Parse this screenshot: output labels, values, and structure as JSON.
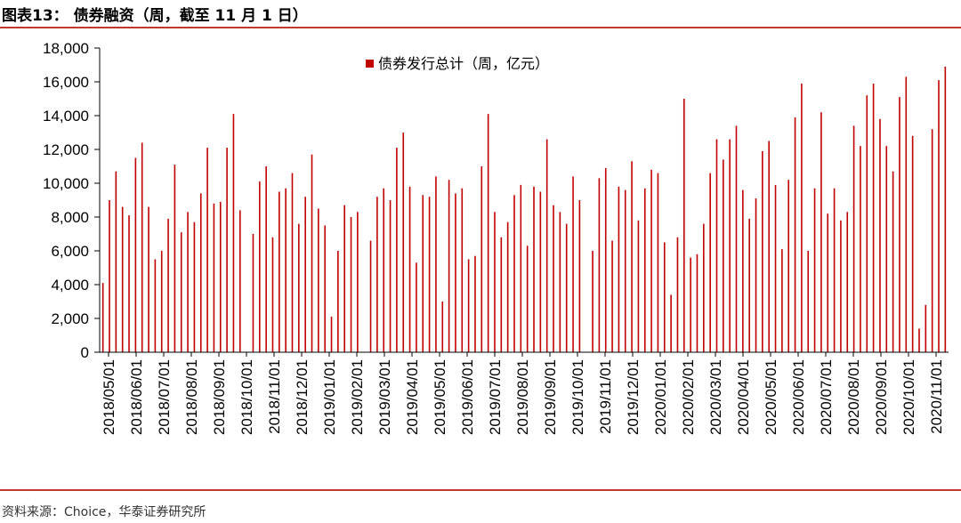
{
  "header": {
    "title": "图表13： 债券融资（周，截至 11 月 1 日）"
  },
  "footer": {
    "source": "资料来源：Choice，华泰证券研究所"
  },
  "colors": {
    "bar": "#c00000",
    "rule": "#c0392b"
  },
  "chart_data": {
    "type": "bar",
    "title": "",
    "xlabel": "",
    "ylabel": "",
    "ylim": [
      0,
      18000
    ],
    "y_ticks": [
      0,
      2000,
      4000,
      6000,
      8000,
      10000,
      12000,
      14000,
      16000,
      18000
    ],
    "y_tick_labels": [
      "0",
      "2,000",
      "4,000",
      "6,000",
      "8,000",
      "10,000",
      "12,000",
      "14,000",
      "16,000",
      "18,000"
    ],
    "x_tick_labels": [
      "2018/05/01",
      "2018/06/01",
      "2018/07/01",
      "2018/08/01",
      "2018/09/01",
      "2018/10/01",
      "2018/11/01",
      "2018/12/01",
      "2019/01/01",
      "2019/02/01",
      "2019/03/01",
      "2019/04/01",
      "2019/05/01",
      "2019/06/01",
      "2019/07/01",
      "2019/08/01",
      "2019/09/01",
      "2019/10/01",
      "2019/11/01",
      "2019/12/01",
      "2020/01/01",
      "2020/02/01",
      "2020/03/01",
      "2020/04/01",
      "2020/05/01",
      "2020/06/01",
      "2020/07/01",
      "2020/08/01",
      "2020/09/01",
      "2020/10/01",
      "2020/11/01"
    ],
    "grid": false,
    "legend_position": "top-center",
    "series": [
      {
        "name": "债券发行总计（周，亿元）",
        "values": [
          4100,
          9000,
          10700,
          8600,
          8100,
          11500,
          12400,
          8600,
          5500,
          6000,
          7900,
          11100,
          7100,
          8300,
          7700,
          9400,
          12100,
          8800,
          8900,
          12100,
          14100,
          8400,
          0,
          7000,
          10100,
          11000,
          6800,
          9500,
          9700,
          10600,
          7600,
          9200,
          11700,
          8500,
          7500,
          2100,
          6000,
          8700,
          8000,
          8300,
          0,
          6600,
          9200,
          9700,
          9000,
          12100,
          13000,
          9800,
          5300,
          9300,
          9200,
          10400,
          3000,
          10200,
          9400,
          9700,
          5500,
          5700,
          11000,
          14100,
          8300,
          6800,
          7700,
          9300,
          9900,
          6300,
          9800,
          9500,
          12600,
          8700,
          8300,
          7600,
          10400,
          9000,
          0,
          6000,
          10300,
          10900,
          6600,
          9800,
          9600,
          11300,
          7800,
          9700,
          10800,
          10600,
          6500,
          3400,
          6800,
          15000,
          5600,
          5800,
          7600,
          10600,
          12600,
          11400,
          12600,
          13400,
          9600,
          7900,
          9100,
          11900,
          12500,
          9900,
          6100,
          10200,
          13900,
          15900,
          6000,
          9700,
          14200,
          8200,
          9700,
          7800,
          8300,
          13400,
          12200,
          15200,
          15900,
          13800,
          12200,
          10700,
          15100,
          16300,
          12800,
          1400,
          2800,
          13200,
          16100,
          16900
        ]
      }
    ]
  }
}
